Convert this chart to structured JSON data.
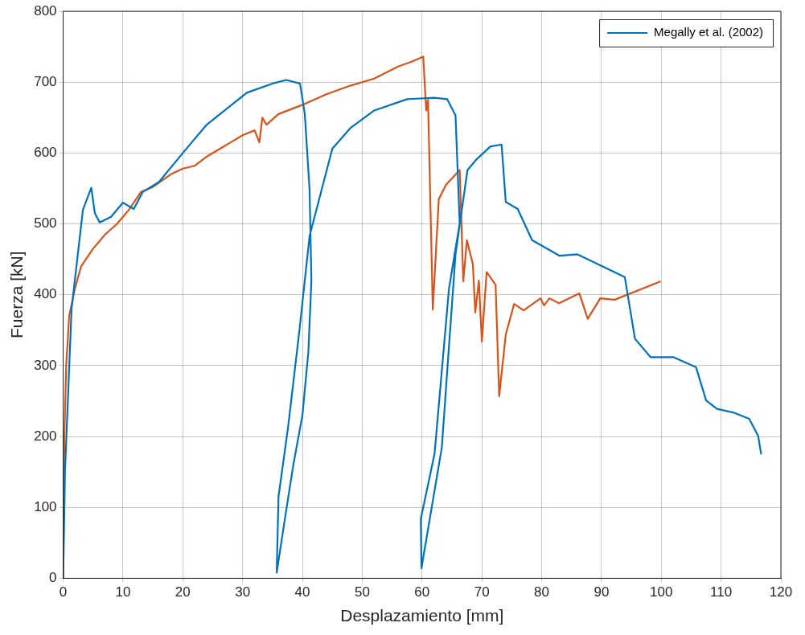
{
  "chart_data": {
    "type": "line",
    "xlabel": "Desplazamiento [mm]",
    "ylabel": "Fuerza [kN]",
    "xlim": [
      0,
      120
    ],
    "xticks": [
      0,
      10,
      20,
      30,
      40,
      50,
      60,
      70,
      80,
      90,
      100,
      110,
      120
    ],
    "ylim": [
      0,
      800
    ],
    "yticks": [
      0,
      100,
      200,
      300,
      400,
      500,
      600,
      700,
      800
    ],
    "grid": true,
    "legend": "top right",
    "marker": "none",
    "line_style": "solid",
    "series": [
      {
        "name": "Megally et al. (2002)",
        "color": "#0072bd",
        "x": [
          0,
          0.3,
          1.4,
          3.3,
          4.7,
          5.3,
          6.1,
          8,
          10,
          11.8,
          13.3,
          16,
          20,
          24,
          30.7,
          35,
          37.3,
          39.6,
          40.4,
          41.2,
          41.5,
          41,
          40,
          38.5,
          37,
          35.7,
          36,
          37.6,
          39.5,
          41.2,
          45,
          48,
          52,
          57.5,
          62,
          64.2,
          65.6,
          66.3,
          65.5,
          64.5,
          62.1,
          59.8,
          59.9,
          63.3,
          65.6,
          67.6,
          69,
          71.4,
          73.3,
          74,
          76,
          78.4,
          83,
          86,
          93.9,
          95.6,
          98.2,
          102,
          105.8,
          107.5,
          109.3,
          112,
          114.7,
          116.2,
          116.7
        ],
        "values": [
          0,
          150,
          380,
          520,
          551,
          515,
          502,
          510,
          530,
          521,
          545,
          559,
          600,
          640,
          685,
          698,
          703,
          698,
          655,
          548,
          420,
          320,
          230,
          161,
          80,
          8,
          115,
          213,
          350,
          483,
          606,
          635,
          660,
          676,
          678,
          676,
          653,
          500,
          460,
          408,
          176,
          84,
          14,
          184,
          457,
          576,
          590,
          609,
          612,
          531,
          521,
          477,
          455,
          457,
          425,
          338,
          312,
          312,
          298,
          251,
          239,
          234,
          225,
          201,
          175
        ]
      },
      {
        "color": "#d95319",
        "x": [
          0,
          0.2,
          0.5,
          1,
          2,
          3,
          5,
          7,
          9,
          11,
          13,
          15,
          18,
          20,
          22,
          24,
          26,
          28,
          30,
          32,
          32.8,
          33.3,
          34,
          36,
          40,
          44,
          48,
          52,
          56,
          58,
          60.2,
          60.7,
          61,
          61.8,
          62.8,
          64,
          66.3,
          66.9,
          67.5,
          68.5,
          68.9,
          69.5,
          70,
          70.8,
          72.3,
          72.9,
          74,
          75.4,
          77,
          79.8,
          80.4,
          81.3,
          82.9,
          86.3,
          87.7,
          89.8,
          92.2,
          99.9
        ],
        "values": [
          0,
          200,
          300,
          370,
          410,
          440,
          465,
          485,
          500,
          520,
          545,
          552,
          570,
          578,
          582,
          595,
          605,
          615,
          625,
          632,
          615,
          650,
          640,
          655,
          668,
          683,
          695,
          705,
          722,
          728,
          736,
          660,
          675,
          379,
          535,
          555,
          576,
          419,
          477,
          443,
          375,
          420,
          334,
          432,
          414,
          257,
          344,
          387,
          378,
          395,
          385,
          395,
          388,
          402,
          366,
          395,
          393,
          419
        ]
      }
    ]
  }
}
